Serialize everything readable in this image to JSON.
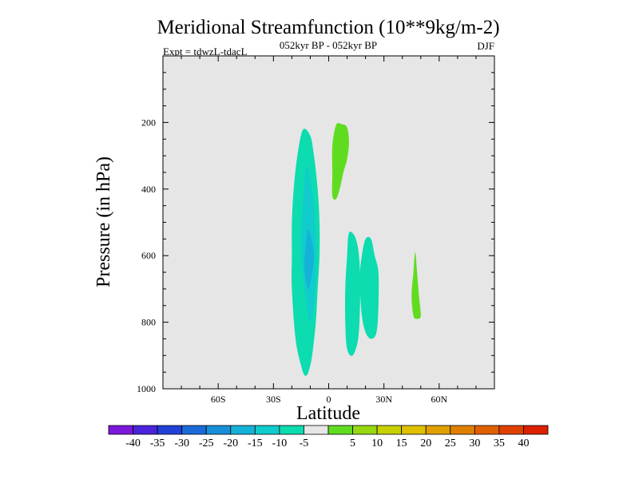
{
  "chart_data": {
    "type": "contour",
    "title": "Meridional Streamfunction (10**9kg/m-2)",
    "subtitle": "052kyr BP - 052kyr BP",
    "left_label": "Expt = tdwzL-tdacL",
    "right_label": "DJF",
    "xlabel": "Latitude",
    "ylabel": "Pressure (in hPa)",
    "xlim": [
      -90,
      90
    ],
    "ylim": [
      1000,
      0
    ],
    "x_ticks": [
      {
        "value": -60,
        "label": "60S"
      },
      {
        "value": -30,
        "label": "30S"
      },
      {
        "value": 0,
        "label": "0"
      },
      {
        "value": 30,
        "label": "30N"
      },
      {
        "value": 60,
        "label": "60N"
      }
    ],
    "y_ticks": [
      {
        "value": 200,
        "label": "200"
      },
      {
        "value": 400,
        "label": "400"
      },
      {
        "value": 600,
        "label": "600"
      },
      {
        "value": 800,
        "label": "800"
      },
      {
        "value": 1000,
        "label": "1000"
      }
    ],
    "background_color": "#e6e6e6",
    "colorbar": {
      "colors": [
        "#7b18dc",
        "#4a24dc",
        "#2040d8",
        "#1a6ad8",
        "#1890d8",
        "#14b2d8",
        "#10cccc",
        "#0cdcb0",
        "#e6e6e6",
        "#60dc20",
        "#98d810",
        "#c8d000",
        "#e0c000",
        "#e0a000",
        "#e08000",
        "#e06000",
        "#e04000",
        "#dc2000"
      ],
      "labels": [
        "-40",
        "-35",
        "-30",
        "-25",
        "-20",
        "-15",
        "-10",
        "-5",
        "5",
        "10",
        "15",
        "20",
        "25",
        "30",
        "35",
        "40"
      ]
    },
    "regions": [
      {
        "level": "-10 to -5",
        "color": "#0cdcb0",
        "points": [
          [
            -14,
            222
          ],
          [
            -10,
            240
          ],
          [
            -8,
            300
          ],
          [
            -6,
            400
          ],
          [
            -5,
            500
          ],
          [
            -5,
            600
          ],
          [
            -6,
            700
          ],
          [
            -7,
            800
          ],
          [
            -9,
            900
          ],
          [
            -11,
            950
          ],
          [
            -13,
            960
          ],
          [
            -15,
            930
          ],
          [
            -18,
            850
          ],
          [
            -20,
            700
          ],
          [
            -20,
            600
          ],
          [
            -20,
            500
          ],
          [
            -19,
            400
          ],
          [
            -17,
            300
          ]
        ]
      },
      {
        "level": "-15 to -10",
        "color": "#10cccc",
        "points": [
          [
            -12,
            330
          ],
          [
            -10,
            380
          ],
          [
            -8,
            450
          ],
          [
            -7,
            550
          ],
          [
            -7,
            650
          ],
          [
            -8,
            740
          ],
          [
            -10,
            800
          ],
          [
            -12,
            740
          ],
          [
            -14,
            650
          ],
          [
            -15,
            550
          ],
          [
            -14,
            450
          ],
          [
            -13,
            380
          ]
        ]
      },
      {
        "level": "-20 to -15",
        "color": "#14b2d8",
        "points": [
          [
            -11,
            520
          ],
          [
            -9,
            560
          ],
          [
            -8,
            600
          ],
          [
            -9,
            650
          ],
          [
            -11,
            700
          ],
          [
            -13,
            650
          ],
          [
            -13,
            600
          ],
          [
            -12,
            550
          ]
        ]
      },
      {
        "level": "5 to 10",
        "color": "#60dc20",
        "points": [
          [
            4,
            208
          ],
          [
            7,
            205
          ],
          [
            10,
            215
          ],
          [
            11,
            260
          ],
          [
            10,
            310
          ],
          [
            8,
            350
          ],
          [
            6,
            400
          ],
          [
            4,
            430
          ],
          [
            2,
            420
          ],
          [
            2,
            350
          ],
          [
            2,
            270
          ]
        ]
      },
      {
        "level": "-10 to -5",
        "color": "#0cdcb0",
        "points": [
          [
            11,
            532
          ],
          [
            14,
            540
          ],
          [
            16,
            580
          ],
          [
            17,
            650
          ],
          [
            17,
            750
          ],
          [
            16,
            850
          ],
          [
            13,
            900
          ],
          [
            10,
            880
          ],
          [
            9,
            800
          ],
          [
            9,
            700
          ],
          [
            10,
            600
          ]
        ]
      },
      {
        "level": "-10 to -5",
        "color": "#0cdcb0",
        "points": [
          [
            20,
            550
          ],
          [
            23,
            550
          ],
          [
            25,
            600
          ],
          [
            27,
            650
          ],
          [
            27,
            750
          ],
          [
            26,
            830
          ],
          [
            23,
            850
          ],
          [
            20,
            830
          ],
          [
            18,
            780
          ],
          [
            17,
            700
          ],
          [
            17,
            650
          ],
          [
            18,
            600
          ]
        ]
      },
      {
        "level": "5 to 10",
        "color": "#60dc20",
        "points": [
          [
            47,
            590
          ],
          [
            48,
            650
          ],
          [
            49,
            720
          ],
          [
            50,
            780
          ],
          [
            48,
            790
          ],
          [
            46,
            780
          ],
          [
            45,
            720
          ],
          [
            46,
            650
          ]
        ]
      }
    ]
  }
}
